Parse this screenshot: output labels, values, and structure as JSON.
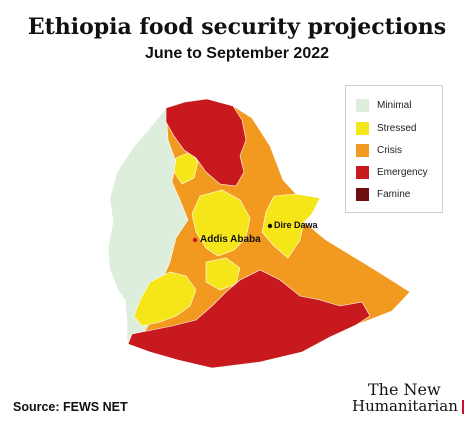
{
  "header": {
    "title": "Ethiopia food security projections",
    "subtitle": "June to September 2022"
  },
  "legend": {
    "items": [
      {
        "label": "Minimal",
        "color": "#ddeedd"
      },
      {
        "label": "Stressed",
        "color": "#f5e61a"
      },
      {
        "label": "Crisis",
        "color": "#f29a1f"
      },
      {
        "label": "Emergency",
        "color": "#c8191e"
      },
      {
        "label": "Famine",
        "color": "#6e0e0e"
      }
    ]
  },
  "cities": {
    "dire_dawa": "Dire Dawa",
    "addis_ababa": "Addis Ababa",
    "marker_color": "#c8191e"
  },
  "footer": {
    "source": "Source: FEWS NET",
    "brand_line1": "The New",
    "brand_line2": "Humanitarian",
    "brand_accent": "#c8102e"
  }
}
